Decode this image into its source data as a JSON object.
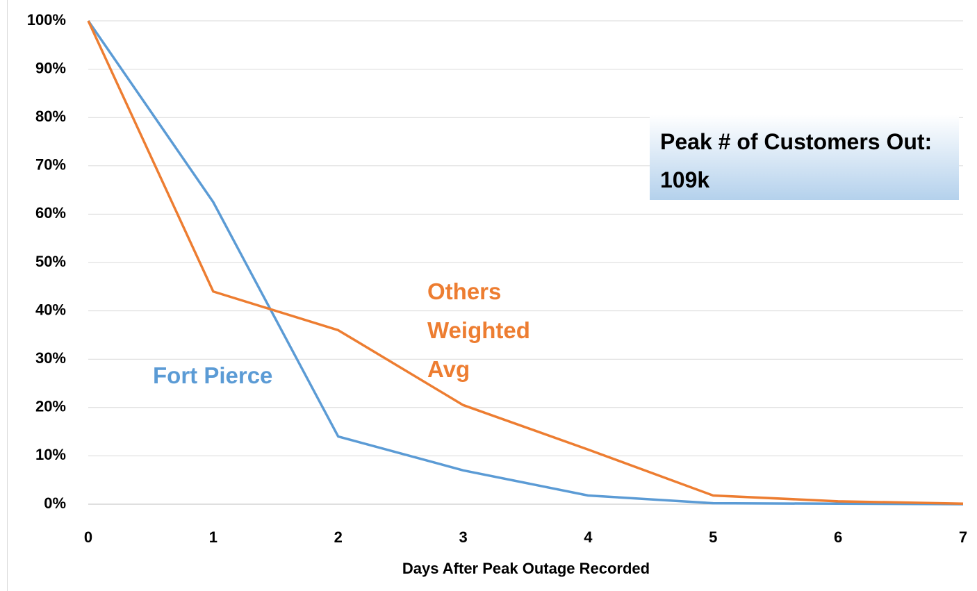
{
  "chart_data": {
    "type": "line",
    "x": [
      0,
      1,
      2,
      3,
      4,
      5,
      6,
      7
    ],
    "series": [
      {
        "name": "Fort Pierce",
        "color": "#5b9bd5",
        "values": [
          100,
          62.5,
          14,
          7,
          1.8,
          0.2,
          0.1,
          0
        ]
      },
      {
        "name": "Others Weighted Avg",
        "color": "#ed7d31",
        "values": [
          100,
          44,
          36,
          20.5,
          11.3,
          1.8,
          0.6,
          0.1
        ]
      }
    ],
    "xlim": [
      0,
      7
    ],
    "xticks": [
      0,
      1,
      2,
      3,
      4,
      5,
      6,
      7
    ],
    "ylim": [
      0,
      100
    ],
    "yticks": [
      {
        "value": 0,
        "label": "0%"
      },
      {
        "value": 10,
        "label": "10%"
      },
      {
        "value": 20,
        "label": "20%"
      },
      {
        "value": 30,
        "label": "30%"
      },
      {
        "value": 40,
        "label": "40%"
      },
      {
        "value": 50,
        "label": "50%"
      },
      {
        "value": 60,
        "label": "60%"
      },
      {
        "value": 70,
        "label": "70%"
      },
      {
        "value": 80,
        "label": "80%"
      },
      {
        "value": 90,
        "label": "90%"
      },
      {
        "value": 100,
        "label": "100%"
      }
    ],
    "xlabel": "Days After Peak Outage Recorded",
    "annotation": "Peak # of Customers Out: 109k",
    "grid": true
  }
}
